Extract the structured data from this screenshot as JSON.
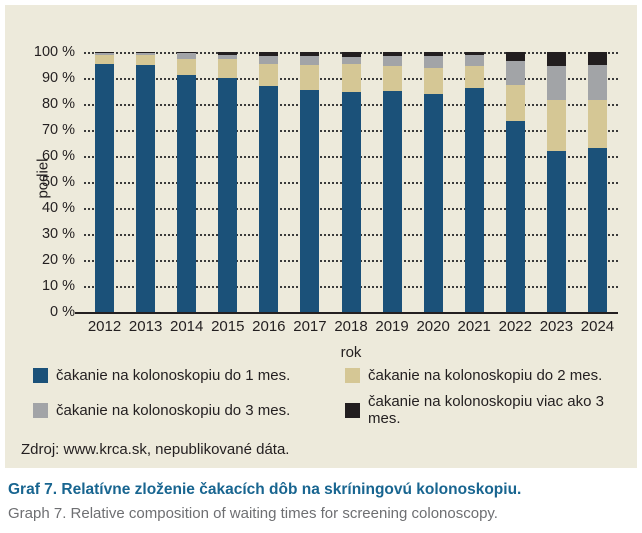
{
  "chart_data": {
    "type": "bar",
    "stacked": true,
    "orientation": "vertical",
    "xlabel": "rok",
    "ylabel": "podiel",
    "ylim": [
      0,
      100
    ],
    "ytick_step": 10,
    "ytick_suffix": " %",
    "grid": "horizontal dotted",
    "legend_position": "bottom",
    "categories": [
      "2012",
      "2013",
      "2014",
      "2015",
      "2016",
      "2017",
      "2018",
      "2019",
      "2020",
      "2021",
      "2022",
      "2023",
      "2024"
    ],
    "series": [
      {
        "name": "čakanie na kolonoskopiu do 1 mes.",
        "color": "#1b5179",
        "values": [
          95.5,
          95,
          91,
          90,
          87,
          85.5,
          84.5,
          85,
          84,
          86,
          73.5,
          62,
          63
        ]
      },
      {
        "name": "čakanie na kolonoskopiu do 2 mes.",
        "color": "#d5c795",
        "values": [
          3.5,
          4,
          6.5,
          7.5,
          8.5,
          9.5,
          11,
          9.5,
          10,
          8.5,
          14,
          19.5,
          18.5
        ]
      },
      {
        "name": "čakanie na kolonoskopiu do 3 mes.",
        "color": "#a2a4a7",
        "values": [
          0.5,
          0.5,
          2,
          1.5,
          3,
          3.5,
          2.5,
          4,
          4.5,
          4.5,
          9,
          13,
          13.5
        ]
      },
      {
        "name": "čakanie na kolonoskopiu viac ako 3 mes.",
        "color": "#221e1f",
        "values": [
          0.5,
          0.5,
          0.5,
          1,
          1.5,
          1.5,
          2,
          1.5,
          1.5,
          1,
          3.5,
          5.5,
          5
        ]
      }
    ]
  },
  "panel": {
    "background": "#edeadb"
  },
  "source": "Zdroj: www.krca.sk, nepublikované dáta.",
  "caption": {
    "sk": "Graf 7. Relatívne zloženie čakacích dôb na skríningovú kolonoskopiu.",
    "en": "Graph 7. Relative composition of waiting times for screening colonoscopy."
  }
}
